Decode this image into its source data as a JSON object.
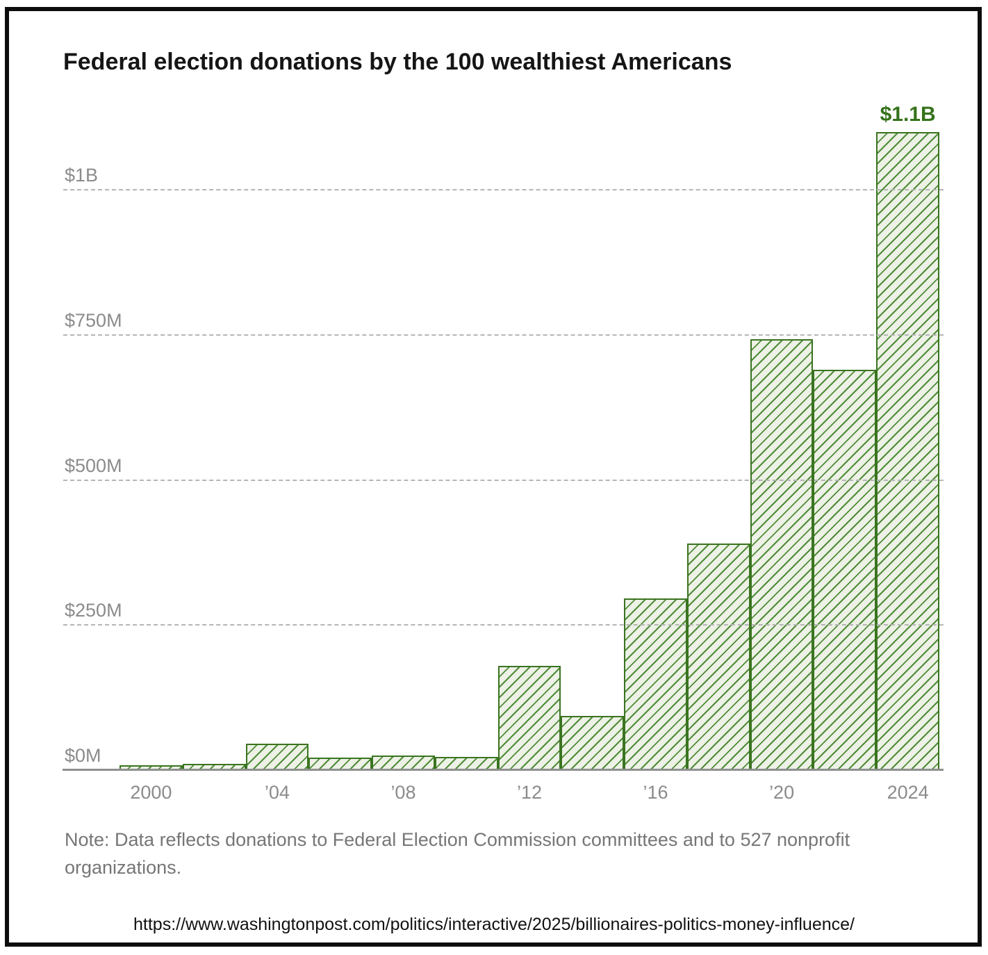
{
  "title": "Federal election donations by the 100 wealthiest Americans",
  "note": "Note: Data reflects donations to Federal Election Commission committees and to 527 nonprofit organizations.",
  "url": "https://www.washingtonpost.com/politics/interactive/2025/billionaires-politics-money-influence/",
  "chart_data": {
    "type": "bar",
    "title": "Federal election donations by the 100 wealthiest Americans",
    "unit": "millions of USD",
    "categories": [
      2000,
      2002,
      2004,
      2006,
      2008,
      2010,
      2012,
      2014,
      2016,
      2018,
      2020,
      2022,
      2024
    ],
    "values": [
      8,
      11,
      46,
      21,
      25,
      23,
      180,
      94,
      296,
      390,
      743,
      690,
      1100
    ],
    "bar_annotation": {
      "year": 2024,
      "text": "$1.1B"
    },
    "x_ticks": [
      {
        "label": "2000",
        "year_index": 0
      },
      {
        "label": "’04",
        "year_index": 2
      },
      {
        "label": "’08",
        "year_index": 4
      },
      {
        "label": "’12",
        "year_index": 6
      },
      {
        "label": "’16",
        "year_index": 8
      },
      {
        "label": "’20",
        "year_index": 10
      },
      {
        "label": "2024",
        "year_index": 12
      }
    ],
    "y_ticks": [
      {
        "label": "$0M",
        "value": 0
      },
      {
        "label": "$250M",
        "value": 250
      },
      {
        "label": "$500M",
        "value": 500
      },
      {
        "label": "$750M",
        "value": 750
      },
      {
        "label": "$1B",
        "value": 1000
      }
    ],
    "ylim": [
      0,
      1150
    ],
    "grid": "dashed horizontal gridlines above $0M; solid gray baseline at $0M",
    "legend": "none",
    "colors": {
      "bar_fill": "#edf1e6",
      "bar_hatch_line": "#4e8c37",
      "bar_border": "#3a7420",
      "annotation_green": "#35731c",
      "gridline_gray": "#b5b5b5",
      "axis_gray": "#8f8f8f",
      "tick_label_gray": "#8b8b8b",
      "note_gray": "#767676",
      "title_black": "#151515",
      "frame_black": "#0d0d0d"
    }
  }
}
